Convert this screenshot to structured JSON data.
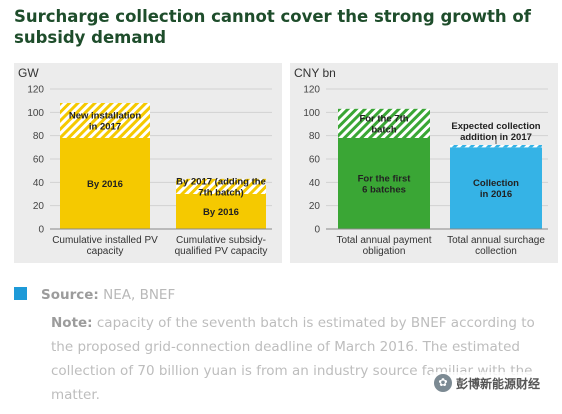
{
  "title": "Surcharge collection cannot cover the strong growth of subsidy demand",
  "chart_data": [
    {
      "type": "bar",
      "stacked": true,
      "unit_label": "GW",
      "ylim": [
        0,
        120
      ],
      "yticks": [
        0,
        20,
        40,
        60,
        80,
        100,
        120
      ],
      "grid": true,
      "categories": [
        [
          "Cumulative installed  PV",
          "capacity"
        ],
        [
          "Cumulative subsidy-",
          "qualified PV capacity"
        ]
      ],
      "segments": [
        {
          "category": 0,
          "base": 0,
          "value": 78,
          "color": "#f5c900",
          "pattern": "solid",
          "label": [
            "By 2016"
          ]
        },
        {
          "category": 0,
          "base": 78,
          "value": 30,
          "color": "#f5c900",
          "pattern": "hatch",
          "label": [
            "New installation",
            "in 2017"
          ]
        },
        {
          "category": 1,
          "base": 0,
          "value": 30,
          "color": "#f5c900",
          "pattern": "solid",
          "label": [
            "By 2016"
          ]
        },
        {
          "category": 1,
          "base": 30,
          "value": 13,
          "color": "#f5c900",
          "pattern": "hatch",
          "label": [
            "By 2017 (adding the",
            "7th batch)"
          ]
        }
      ]
    },
    {
      "type": "bar",
      "stacked": true,
      "unit_label": "CNY bn",
      "ylim": [
        0,
        120
      ],
      "yticks": [
        0,
        20,
        40,
        60,
        80,
        100,
        120
      ],
      "grid": true,
      "categories": [
        [
          "Total annual payment",
          "obligation"
        ],
        [
          "Total annual surchage",
          "collection"
        ]
      ],
      "segments": [
        {
          "category": 0,
          "base": 0,
          "value": 78,
          "color": "#3aa635",
          "pattern": "solid",
          "label": [
            "For the first",
            "6 batches"
          ]
        },
        {
          "category": 0,
          "base": 78,
          "value": 25,
          "color": "#3aa635",
          "pattern": "hatch",
          "label": [
            "For the 7th",
            "batch"
          ]
        },
        {
          "category": 1,
          "base": 0,
          "value": 70,
          "color": "#35b3e6",
          "pattern": "solid",
          "label": [
            "Collection",
            "in 2016"
          ]
        },
        {
          "category": 1,
          "base": 70,
          "value": 2,
          "color": "#35b3e6",
          "pattern": "hatch",
          "label": []
        }
      ],
      "annotations": [
        {
          "category": 1,
          "y": 72,
          "text": [
            "Expected collection",
            "addition in 2017"
          ]
        }
      ]
    }
  ],
  "source": {
    "label": "Source:",
    "text": " NEA, BNEF"
  },
  "note": {
    "label": "Note:",
    "text": " capacity of the seventh batch is estimated by BNEF according to the proposed grid-connection deadline of March 2016. The estimated collection of 70 billion yuan is from an industry source familiar with the matter."
  },
  "watermark": {
    "icon": "wechat-logo-icon",
    "logo_glyph": "✿",
    "text": "彭博新能源财经"
  },
  "colors": {
    "title": "#1e4d2b",
    "panel_bg": "#ececec",
    "source_square": "#1e9ad8"
  }
}
